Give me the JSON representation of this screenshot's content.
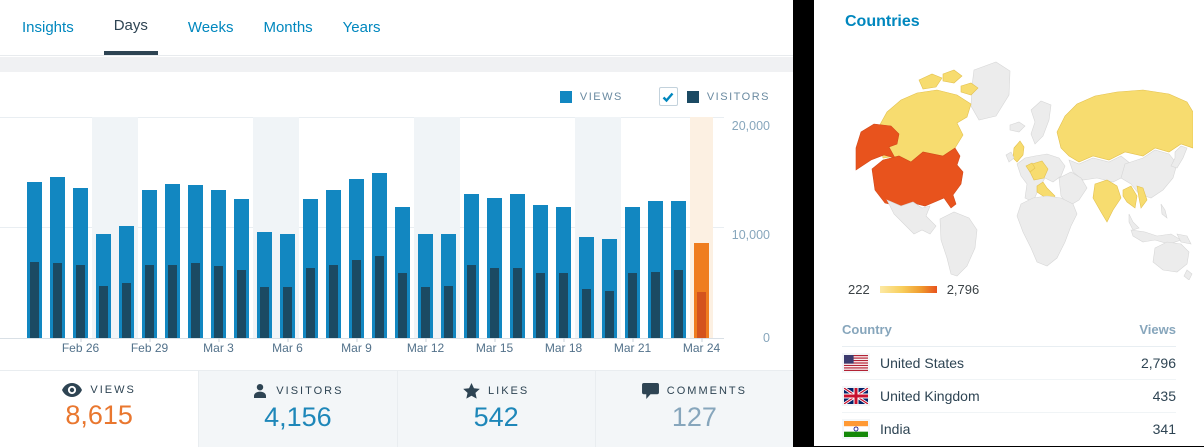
{
  "colors": {
    "accent": "#0087be",
    "dark": "#2e4453",
    "muted": "#87a6bc",
    "border": "#e9edf0",
    "grid": "#e9eef2",
    "baseline": "#d9e0e6",
    "cell-bg": "#f3f6f8",
    "views-bar": "#1287c1",
    "visitors-bar": "#1b4a63",
    "today-views": "#ef7d1f",
    "today-visitors": "#d4531d",
    "weekend-band": "#f0f4f7",
    "today-band": "#fcf0e2",
    "value-orange": "#e9772f",
    "value-blue": "#1e87b9",
    "map-neutral": "#ececec",
    "map-warm": "#f7dc6f",
    "map-hot": "#e8531d"
  },
  "tabs": {
    "items": [
      {
        "label": "Insights",
        "active": false
      },
      {
        "label": "Days",
        "active": true
      },
      {
        "label": "Weeks",
        "active": false
      },
      {
        "label": "Months",
        "active": false
      },
      {
        "label": "Years",
        "active": false
      }
    ]
  },
  "legend": {
    "views_label": "VIEWS",
    "visitors_label": "VISITORS",
    "visitors_checked": true
  },
  "chart_data": {
    "type": "bar",
    "title": "Daily views and visitors",
    "xlabel": "",
    "ylabel": "",
    "ylim": [
      0,
      20000
    ],
    "ytick_labels": [
      "20,000",
      "10,000",
      "0"
    ],
    "legend_entries": [
      "VIEWS",
      "VISITORS"
    ],
    "series_names": [
      "views",
      "visitors"
    ],
    "days": [
      {
        "label": "",
        "views": 14150,
        "visitors": 6900,
        "weekend": false,
        "today": false
      },
      {
        "label": "",
        "views": 14550,
        "visitors": 6750,
        "weekend": false,
        "today": false
      },
      {
        "label": "Feb 26",
        "views": 13600,
        "visitors": 6650,
        "weekend": false,
        "today": false
      },
      {
        "label": "",
        "views": 9400,
        "visitors": 4750,
        "weekend": true,
        "today": false
      },
      {
        "label": "",
        "views": 10100,
        "visitors": 4950,
        "weekend": true,
        "today": false
      },
      {
        "label": "Feb 29",
        "views": 13400,
        "visitors": 6600,
        "weekend": false,
        "today": false
      },
      {
        "label": "",
        "views": 13950,
        "visitors": 6650,
        "weekend": false,
        "today": false
      },
      {
        "label": "",
        "views": 13850,
        "visitors": 6750,
        "weekend": false,
        "today": false
      },
      {
        "label": "Mar 3",
        "views": 13350,
        "visitors": 6500,
        "weekend": false,
        "today": false
      },
      {
        "label": "",
        "views": 12550,
        "visitors": 6200,
        "weekend": false,
        "today": false
      },
      {
        "label": "",
        "views": 9550,
        "visitors": 4600,
        "weekend": true,
        "today": false
      },
      {
        "label": "Mar 6",
        "views": 9400,
        "visitors": 4600,
        "weekend": true,
        "today": false
      },
      {
        "label": "",
        "views": 12550,
        "visitors": 6300,
        "weekend": false,
        "today": false
      },
      {
        "label": "",
        "views": 13400,
        "visitors": 6650,
        "weekend": false,
        "today": false
      },
      {
        "label": "Mar 9",
        "views": 14350,
        "visitors": 7050,
        "weekend": false,
        "today": false
      },
      {
        "label": "",
        "views": 14950,
        "visitors": 7400,
        "weekend": false,
        "today": false
      },
      {
        "label": "",
        "views": 11900,
        "visitors": 5900,
        "weekend": false,
        "today": false
      },
      {
        "label": "Mar 12",
        "views": 9400,
        "visitors": 4600,
        "weekend": true,
        "today": false
      },
      {
        "label": "",
        "views": 9400,
        "visitors": 4700,
        "weekend": true,
        "today": false
      },
      {
        "label": "",
        "views": 13050,
        "visitors": 6600,
        "weekend": false,
        "today": false
      },
      {
        "label": "Mar 15",
        "views": 12700,
        "visitors": 6350,
        "weekend": false,
        "today": false
      },
      {
        "label": "",
        "views": 13050,
        "visitors": 6300,
        "weekend": false,
        "today": false
      },
      {
        "label": "",
        "views": 12050,
        "visitors": 5850,
        "weekend": false,
        "today": false
      },
      {
        "label": "Mar 18",
        "views": 11900,
        "visitors": 5850,
        "weekend": false,
        "today": false
      },
      {
        "label": "",
        "views": 9150,
        "visitors": 4400,
        "weekend": true,
        "today": false
      },
      {
        "label": "",
        "views": 8950,
        "visitors": 4300,
        "weekend": true,
        "today": false
      },
      {
        "label": "Mar 21",
        "views": 11900,
        "visitors": 5900,
        "weekend": false,
        "today": false
      },
      {
        "label": "",
        "views": 12400,
        "visitors": 6000,
        "weekend": false,
        "today": false
      },
      {
        "label": "",
        "views": 12400,
        "visitors": 6150,
        "weekend": false,
        "today": false
      },
      {
        "label": "Mar 24",
        "views": 8615,
        "visitors": 4156,
        "weekend": false,
        "today": true
      }
    ]
  },
  "summary": {
    "items": [
      {
        "label": "VIEWS",
        "value": "8,615",
        "icon": "eye-icon"
      },
      {
        "label": "VISITORS",
        "value": "4,156",
        "icon": "person-icon"
      },
      {
        "label": "LIKES",
        "value": "542",
        "icon": "star-icon"
      },
      {
        "label": "COMMENTS",
        "value": "127",
        "icon": "comment-icon"
      }
    ]
  },
  "countries": {
    "title": "Countries",
    "map_legend": {
      "min": "222",
      "max": "2,796"
    },
    "table": {
      "headers": {
        "country": "Country",
        "views": "Views"
      },
      "rows": [
        {
          "country": "United States",
          "views": "2,796",
          "flag": "us-flag"
        },
        {
          "country": "United Kingdom",
          "views": "435",
          "flag": "uk-flag"
        },
        {
          "country": "India",
          "views": "341",
          "flag": "india-flag"
        }
      ]
    }
  }
}
